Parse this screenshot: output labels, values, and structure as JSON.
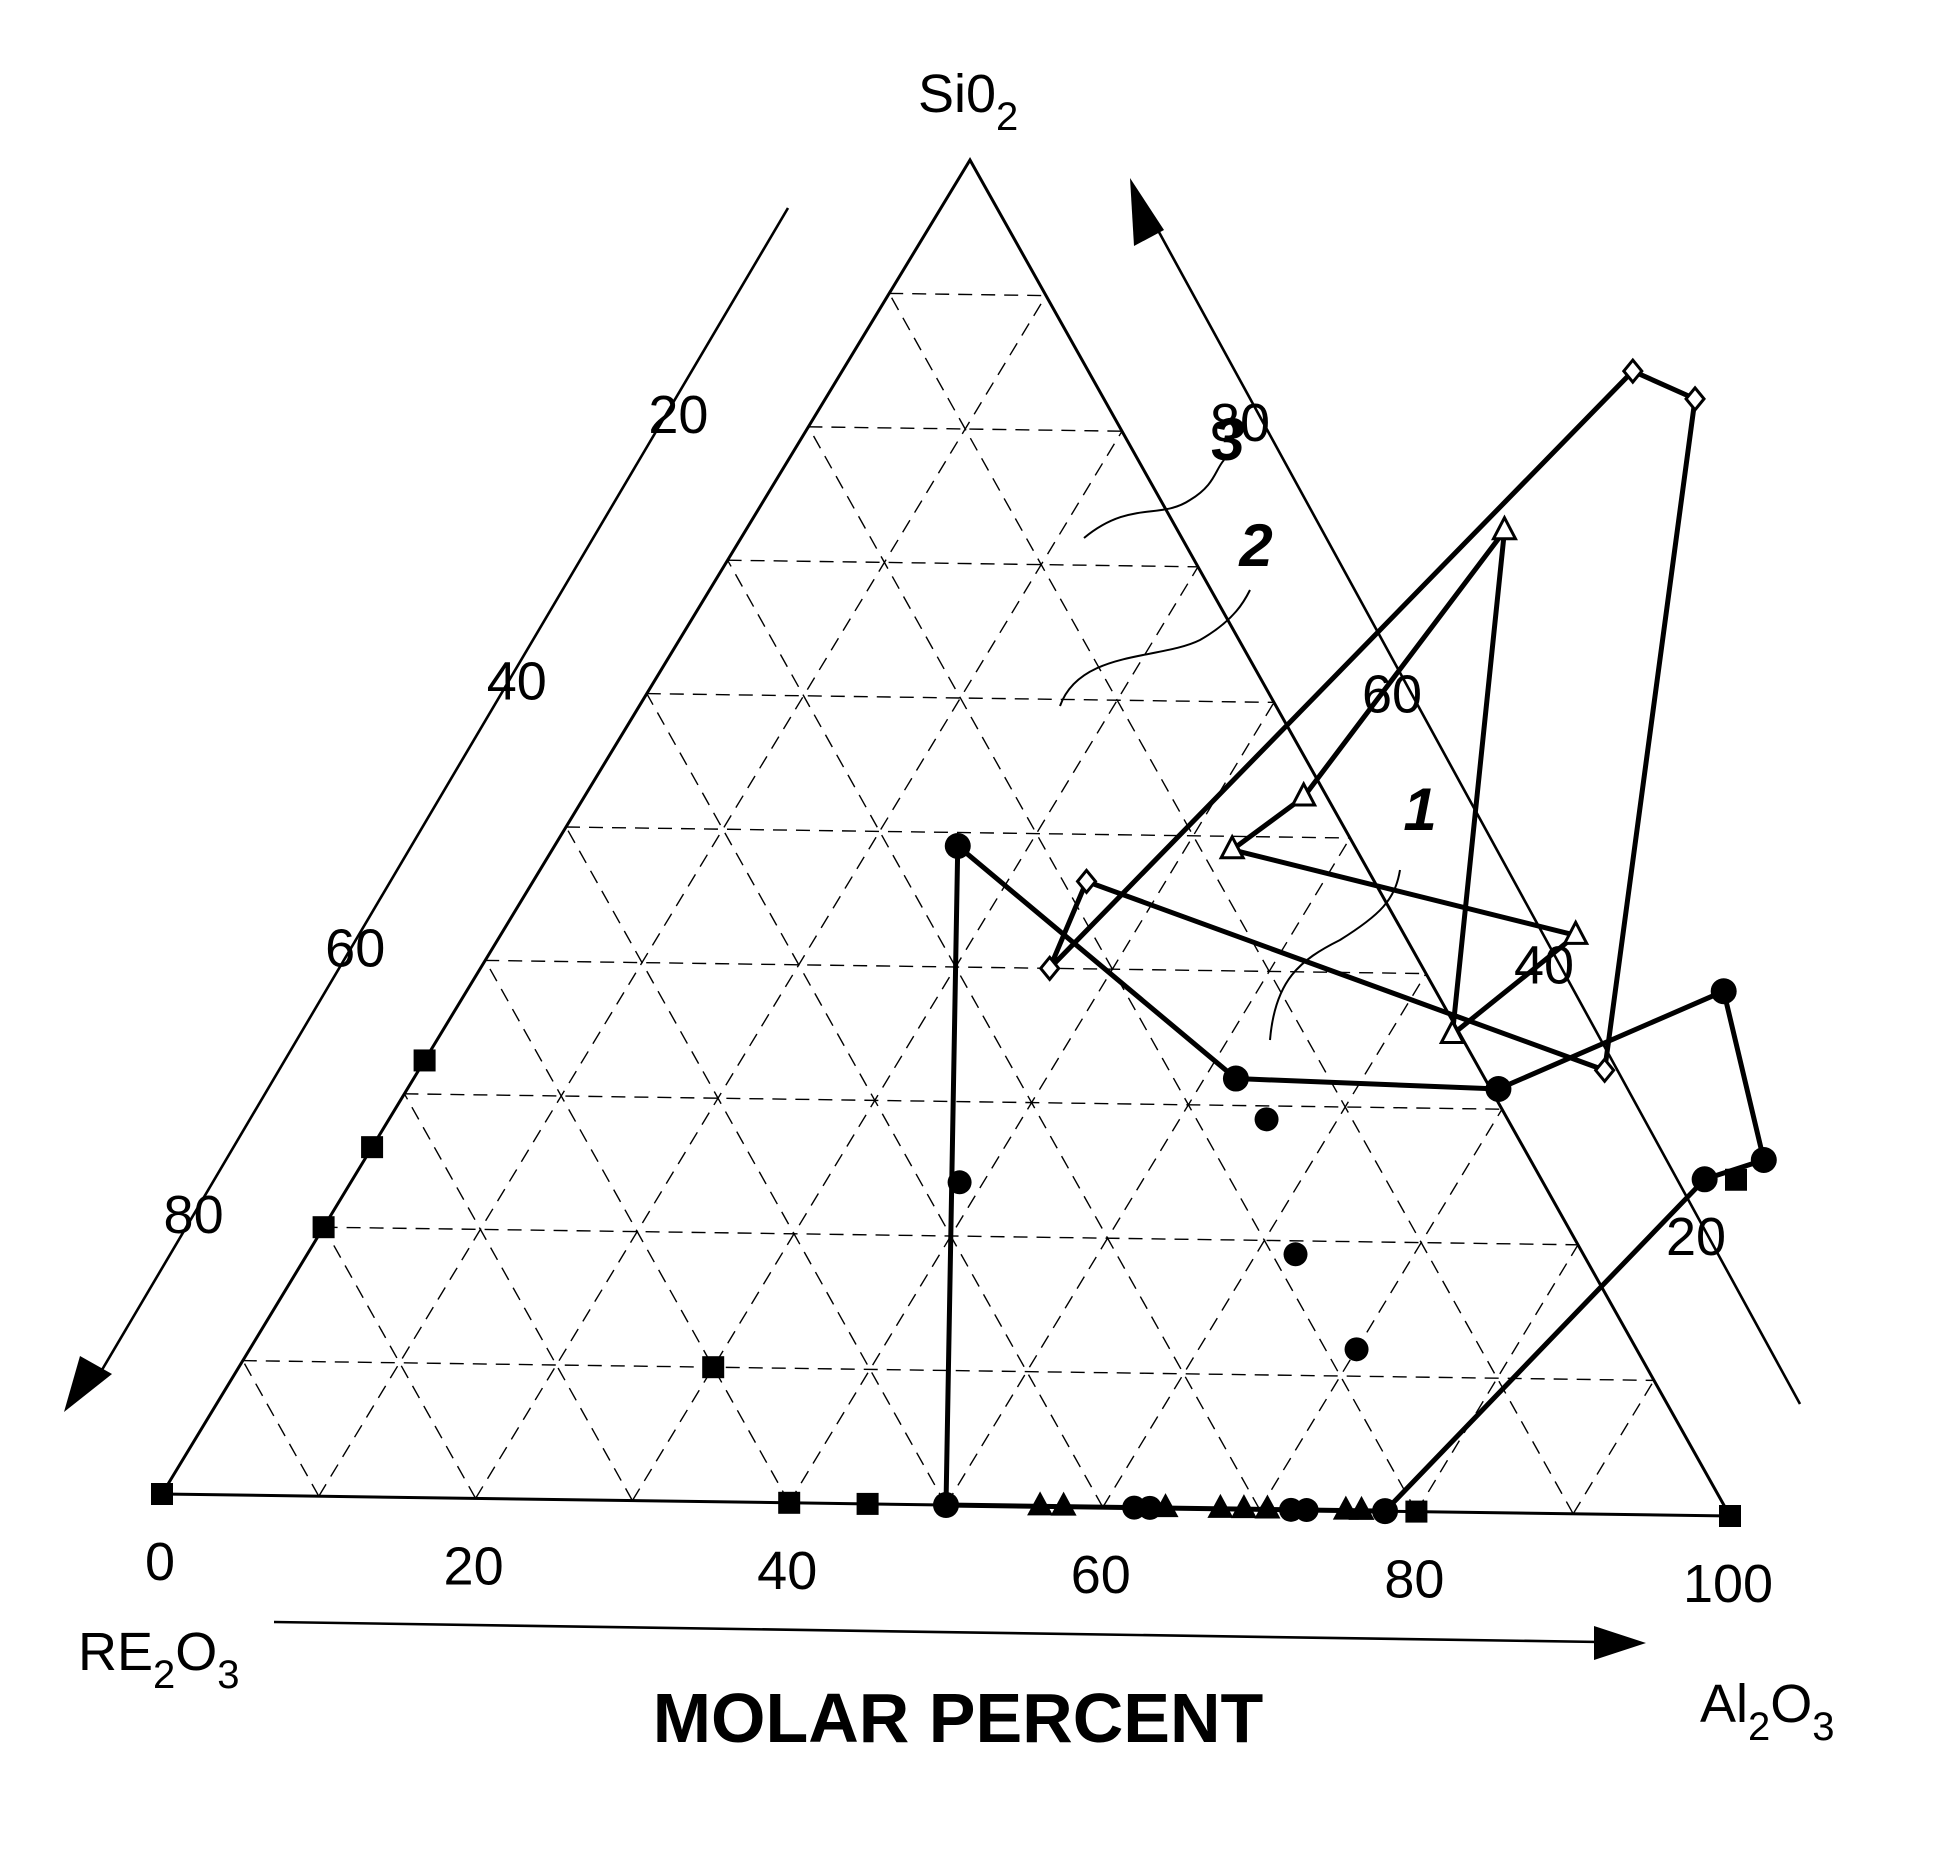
{
  "chart_data": {
    "type": "ternary",
    "components": [
      "SiO2",
      "RE2O3",
      "Al2O3"
    ],
    "apex_labels": {
      "top": {
        "main": "Si0",
        "sub": "2"
      },
      "left": {
        "parts": [
          {
            "t": "RE"
          },
          {
            "s": "2"
          },
          {
            "t": "O"
          },
          {
            "s": "3"
          }
        ]
      },
      "right": {
        "parts": [
          {
            "t": "Al"
          },
          {
            "s": "2"
          },
          {
            "t": "O"
          },
          {
            "s": "3"
          }
        ]
      }
    },
    "axis_title": "MOLAR PERCENT",
    "bottom_ticks": [
      "0",
      "20",
      "40",
      "60",
      "80",
      "100"
    ],
    "bottom_tick_values": [
      0,
      20,
      40,
      60,
      80,
      100
    ],
    "left_ticks": [
      "20",
      "40",
      "60",
      "80"
    ],
    "left_tick_values": [
      20,
      40,
      60,
      80
    ],
    "right_ticks": [
      "80",
      "60",
      "40",
      "20"
    ],
    "right_tick_values": [
      80,
      60,
      40,
      20
    ],
    "grid": true,
    "grid_step": 10,
    "regions": [
      {
        "label": "1",
        "marker": "filled-circle",
        "points": [
          {
            "SiO2": 49,
            "Al2O3": 25.5
          },
          {
            "SiO2": 32,
            "Al2O3": 52
          },
          {
            "SiO2": 31.5,
            "Al2O3": 69
          },
          {
            "SiO2": 39,
            "Al2O3": 79.5
          },
          {
            "SiO2": 26.5,
            "Al2O3": 88.5
          },
          {
            "SiO2": 25,
            "Al2O3": 85.5
          },
          {
            "SiO2": 0,
            "Al2O3": 78
          },
          {
            "SiO2": 0,
            "Al2O3": 50
          }
        ]
      },
      {
        "label": "2",
        "marker": "open-triangle",
        "points": [
          {
            "SiO2": 73,
            "Al2O3": 48
          },
          {
            "SiO2": 35.5,
            "Al2O3": 64
          },
          {
            "SiO2": 43,
            "Al2O3": 68
          },
          {
            "SiO2": 49,
            "Al2O3": 43
          },
          {
            "SiO2": 53,
            "Al2O3": 45.5
          }
        ]
      },
      {
        "label": "3",
        "marker": "open-diamond",
        "points": [
          {
            "SiO2": 85,
            "Al2O3": 50
          },
          {
            "SiO2": 83,
            "Al2O3": 55
          },
          {
            "SiO2": 33,
            "Al2O3": 75
          },
          {
            "SiO2": 46.5,
            "Al2O3": 35
          },
          {
            "SiO2": 40,
            "Al2O3": 36
          }
        ]
      }
    ],
    "extra_points": {
      "circles": [
        {
          "SiO2": 29,
          "Al2O3": 55.5
        },
        {
          "SiO2": 24,
          "Al2O3": 38.5
        },
        {
          "SiO2": 19,
          "Al2O3": 62.5
        },
        {
          "SiO2": 12,
          "Al2O3": 70
        },
        {
          "SiO2": 0,
          "Al2O3": 62
        },
        {
          "SiO2": 0,
          "Al2O3": 63
        },
        {
          "SiO2": 0,
          "Al2O3": 72
        },
        {
          "SiO2": 0,
          "Al2O3": 73
        }
      ],
      "filled_triangles": [
        {
          "SiO2": 0,
          "Al2O3": 56
        },
        {
          "SiO2": 0,
          "Al2O3": 57.5
        },
        {
          "SiO2": 0,
          "Al2O3": 64
        },
        {
          "SiO2": 0,
          "Al2O3": 67.5
        },
        {
          "SiO2": 0,
          "Al2O3": 69
        },
        {
          "SiO2": 0,
          "Al2O3": 70.5
        },
        {
          "SiO2": 0,
          "Al2O3": 75.5
        },
        {
          "SiO2": 0,
          "Al2O3": 76.5
        }
      ],
      "filled_squares": [
        {
          "SiO2": 0,
          "Al2O3": 0
        },
        {
          "SiO2": 0,
          "Al2O3": 40
        },
        {
          "SiO2": 0,
          "Al2O3": 45
        },
        {
          "SiO2": 0,
          "Al2O3": 80
        },
        {
          "SiO2": 0,
          "Al2O3": 100
        },
        {
          "SiO2": 10,
          "Al2O3": 30
        },
        {
          "SiO2": 20,
          "Al2O3": 0
        },
        {
          "SiO2": 26,
          "Al2O3": 0
        },
        {
          "SiO2": 32.5,
          "Al2O3": 0
        },
        {
          "SiO2": 25,
          "Al2O3": 87.5
        }
      ]
    }
  }
}
